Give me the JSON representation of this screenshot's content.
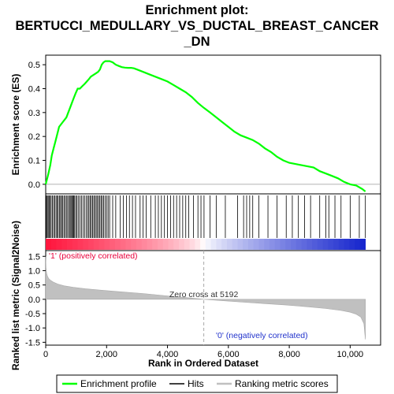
{
  "chart_data": {
    "type": "line",
    "title_lines": [
      "Enrichment plot:",
      "BERTUCCI_MEDULLARY_VS_DUCTAL_BREAST_CANCER",
      "_DN"
    ],
    "top_panel": {
      "ylabel": "Enrichment score (ES)",
      "ylim": [
        -0.04,
        0.54
      ],
      "yticks": [
        0.0,
        0.1,
        0.2,
        0.3,
        0.4,
        0.5
      ],
      "ytick_labels": [
        "0.0",
        "0.1",
        "0.2",
        "0.3",
        "0.4",
        "0.5"
      ],
      "series": [
        {
          "name": "Enrichment profile",
          "color": "#00ff00",
          "x": [
            0,
            80,
            150,
            200,
            260,
            320,
            380,
            440,
            500,
            560,
            620,
            680,
            740,
            800,
            860,
            920,
            980,
            1050,
            1120,
            1200,
            1280,
            1350,
            1420,
            1480,
            1540,
            1600,
            1660,
            1720,
            1780,
            1840,
            1900,
            1960,
            2020,
            2100,
            2200,
            2300,
            2400,
            2500,
            2600,
            2700,
            2800,
            2900,
            3000,
            3200,
            3400,
            3600,
            3800,
            4000,
            4200,
            4400,
            4600,
            4800,
            5000,
            5192,
            5400,
            5600,
            5800,
            6000,
            6200,
            6400,
            6600,
            6800,
            7000,
            7200,
            7400,
            7600,
            7800,
            8000,
            8200,
            8400,
            8600,
            8800,
            9000,
            9200,
            9400,
            9600,
            9800,
            10000,
            10200,
            10400,
            10500
          ],
          "y": [
            0.0,
            0.04,
            0.08,
            0.12,
            0.15,
            0.18,
            0.21,
            0.24,
            0.25,
            0.26,
            0.27,
            0.28,
            0.3,
            0.32,
            0.34,
            0.36,
            0.38,
            0.4,
            0.4,
            0.41,
            0.42,
            0.43,
            0.44,
            0.45,
            0.455,
            0.46,
            0.465,
            0.47,
            0.48,
            0.5,
            0.51,
            0.515,
            0.515,
            0.515,
            0.51,
            0.5,
            0.495,
            0.49,
            0.488,
            0.487,
            0.487,
            0.485,
            0.48,
            0.47,
            0.46,
            0.45,
            0.44,
            0.43,
            0.415,
            0.4,
            0.385,
            0.365,
            0.34,
            0.32,
            0.3,
            0.28,
            0.26,
            0.24,
            0.22,
            0.205,
            0.195,
            0.185,
            0.17,
            0.15,
            0.135,
            0.115,
            0.1,
            0.09,
            0.085,
            0.08,
            0.075,
            0.07,
            0.055,
            0.045,
            0.035,
            0.025,
            0.01,
            0.0,
            -0.005,
            -0.02,
            -0.03
          ]
        }
      ]
    },
    "hits_panel": {
      "hits": [
        20,
        50,
        80,
        110,
        140,
        180,
        220,
        260,
        300,
        340,
        380,
        410,
        450,
        490,
        520,
        560,
        600,
        640,
        680,
        720,
        760,
        800,
        830,
        860,
        890,
        920,
        950,
        990,
        1030,
        1080,
        1130,
        1180,
        1230,
        1280,
        1330,
        1380,
        1420,
        1460,
        1500,
        1540,
        1580,
        1620,
        1660,
        1700,
        1740,
        1780,
        1820,
        1860,
        1900,
        1950,
        2000,
        2050,
        2100,
        2200,
        2300,
        2450,
        2550,
        2650,
        2750,
        2850,
        2950,
        3100,
        3200,
        3300,
        3450,
        3600,
        3700,
        3800,
        3900,
        4000,
        4100,
        4200,
        4300,
        4400,
        4500,
        4600,
        4700,
        4850,
        5000,
        5100,
        5200,
        5400,
        5600,
        5900,
        6300,
        6500,
        6600,
        6700,
        6800,
        7000,
        7300,
        7600,
        7900,
        8100,
        8300,
        8500,
        8700,
        9000,
        9200,
        9300,
        9500,
        9700,
        10000,
        10300,
        10500
      ]
    },
    "bottom_panel": {
      "ylabel": "Ranked list metric (Signal2Noise)",
      "xlabel": "Rank in Ordered Dataset",
      "xlim": [
        0,
        11000
      ],
      "ylim": [
        -1.6,
        1.7
      ],
      "xticks": [
        0,
        2000,
        4000,
        6000,
        8000,
        10000
      ],
      "xtick_labels": [
        "0",
        "2,000",
        "4,000",
        "6,000",
        "8,000",
        "10,000"
      ],
      "yticks": [
        -1.5,
        -1.0,
        -0.5,
        0.0,
        0.5,
        1.0,
        1.5
      ],
      "ytick_labels": [
        "-1.5",
        "-1.0",
        "-0.5",
        "0.0",
        "0.5",
        "1.0",
        "1.5"
      ],
      "metric_x": [
        0,
        10,
        30,
        60,
        100,
        160,
        250,
        400,
        600,
        900,
        1300,
        1800,
        2500,
        3200,
        4000,
        4600,
        5192,
        5800,
        6500,
        7200,
        7900,
        8600,
        9200,
        9700,
        10000,
        10200,
        10350,
        10450,
        10500
      ],
      "metric_y": [
        1.5,
        1.1,
        0.9,
        0.8,
        0.72,
        0.66,
        0.6,
        0.53,
        0.47,
        0.42,
        0.37,
        0.32,
        0.26,
        0.2,
        0.12,
        0.06,
        0.0,
        -0.05,
        -0.1,
        -0.15,
        -0.2,
        -0.26,
        -0.32,
        -0.39,
        -0.45,
        -0.52,
        -0.62,
        -0.85,
        -1.4
      ],
      "zero_cross_label": "Zero cross at 5192",
      "zero_cross_x": 5192,
      "pos_label": "'1' (positively correlated)",
      "neg_label": "'0' (negatively correlated)",
      "pos_color": "#e8003a",
      "neg_color": "#2233cc",
      "metric_color": "#c0c0c0"
    },
    "legend": {
      "placement": "bottom",
      "entries": [
        {
          "label": "Enrichment profile",
          "color": "#00ff00"
        },
        {
          "label": "Hits",
          "color": "#000000"
        },
        {
          "label": "Ranking metric scores",
          "color": "#c0c0c0"
        }
      ]
    }
  }
}
